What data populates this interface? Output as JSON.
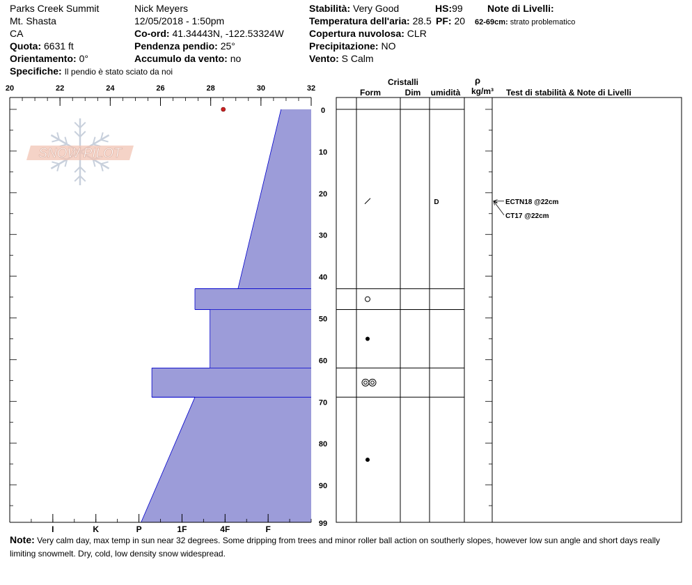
{
  "header": {
    "location": "Parks Creek Summit",
    "range": "Mt. Shasta",
    "state": "CA",
    "elevation_label": "Quota:",
    "elevation_value": "6631 ft",
    "aspect_label": "Orientamento:",
    "aspect_value": "0°",
    "specifics_label": "Specifiche:",
    "specifics_value": "Il pendio è stato sciato da noi",
    "observer": "Nick Meyers",
    "datetime": "12/05/2018 - 1:50pm",
    "coord_label": "Co-ord:",
    "coord_value": "41.34443N, -122.53324W",
    "slope_label": "Pendenza pendio:",
    "slope_value": "25°",
    "wind_load_label": "Accumulo da vento:",
    "wind_load_value": "no",
    "stability_label": "Stabilità:",
    "stability_value": "Very Good",
    "air_temp_label": "Temperatura dell'aria:",
    "air_temp_value": "28.5",
    "cloud_label": "Copertura nuvolosa:",
    "cloud_value": "CLR",
    "precip_label": "Precipitazione:",
    "precip_value": "NO",
    "wind_label": "Vento:",
    "wind_value": "S Calm",
    "hs_label": "HS:",
    "hs_value": "99",
    "pf_label": "PF:",
    "pf_value": "20",
    "layer_notes_label": "Note di Livelli:",
    "layer_note_range": "62-69cm:",
    "layer_note_text": "strato problematico"
  },
  "columns": {
    "crystals": "Cristalli",
    "form": "Form",
    "dim": "Dim",
    "moisture": "umidità",
    "rho": "ρ",
    "density_unit": "kg/m³",
    "stability_notes": "Test di stabilità & Note di Livelli"
  },
  "note": {
    "label": "Note:",
    "text": "Very calm day, max temp in sun near 32 degrees. Some dripping from trees and minor roller ball action on southerly slopes, however low sun angle and short days really limiting snowmelt. Dry, cold, low density snow widespread."
  },
  "logo": {
    "text": "SNOW PILOT",
    "color": "#f2c4b4"
  },
  "chart_data": {
    "type": "area",
    "temp_axis": {
      "range": [
        20,
        32
      ],
      "ticks": [
        20,
        22,
        24,
        26,
        28,
        30,
        32
      ]
    },
    "depth_axis": {
      "range": [
        0,
        99
      ],
      "ticks": [
        0,
        10,
        20,
        30,
        40,
        50,
        60,
        70,
        80,
        90,
        99
      ]
    },
    "hardness_axis": {
      "labels": [
        "I",
        "K",
        "P",
        "1F",
        "4F",
        "F"
      ],
      "values": [
        6,
        5,
        4,
        3,
        2,
        1
      ],
      "range_at_left": 7,
      "range_at_right": 0
    },
    "air_temperature": 28.5,
    "hardness_profile": [
      {
        "depth": 0,
        "hardness": 0.7
      },
      {
        "depth": 43,
        "hardness": 1.7
      },
      {
        "depth": 43,
        "hardness": 2.7
      },
      {
        "depth": 48,
        "hardness": 2.7
      },
      {
        "depth": 48,
        "hardness": 2.35
      },
      {
        "depth": 62,
        "hardness": 2.35
      },
      {
        "depth": 62,
        "hardness": 3.7
      },
      {
        "depth": 69,
        "hardness": 3.7
      },
      {
        "depth": 69,
        "hardness": 2.7
      },
      {
        "depth": 99,
        "hardness": 3.95
      }
    ],
    "layer_boundaries": [
      0,
      43,
      48,
      62,
      69
    ],
    "crystals": [
      {
        "depth": 22,
        "form": "slash"
      },
      {
        "depth": 45.5,
        "form": "ring"
      },
      {
        "depth": 55,
        "form": "dot"
      },
      {
        "depth": 65.5,
        "form": "double-ring"
      },
      {
        "depth": 84,
        "form": "dot"
      }
    ],
    "moisture": [
      {
        "depth": 22,
        "value": "D"
      }
    ],
    "tests": [
      {
        "depth": 22,
        "label": "ECTN18 @22cm"
      },
      {
        "depth": 22,
        "label": "CT17 @22cm"
      }
    ],
    "fill_color": "#9c9cd9",
    "edge_color": "#0000cc",
    "temp_marker_color": "#cc2222"
  }
}
